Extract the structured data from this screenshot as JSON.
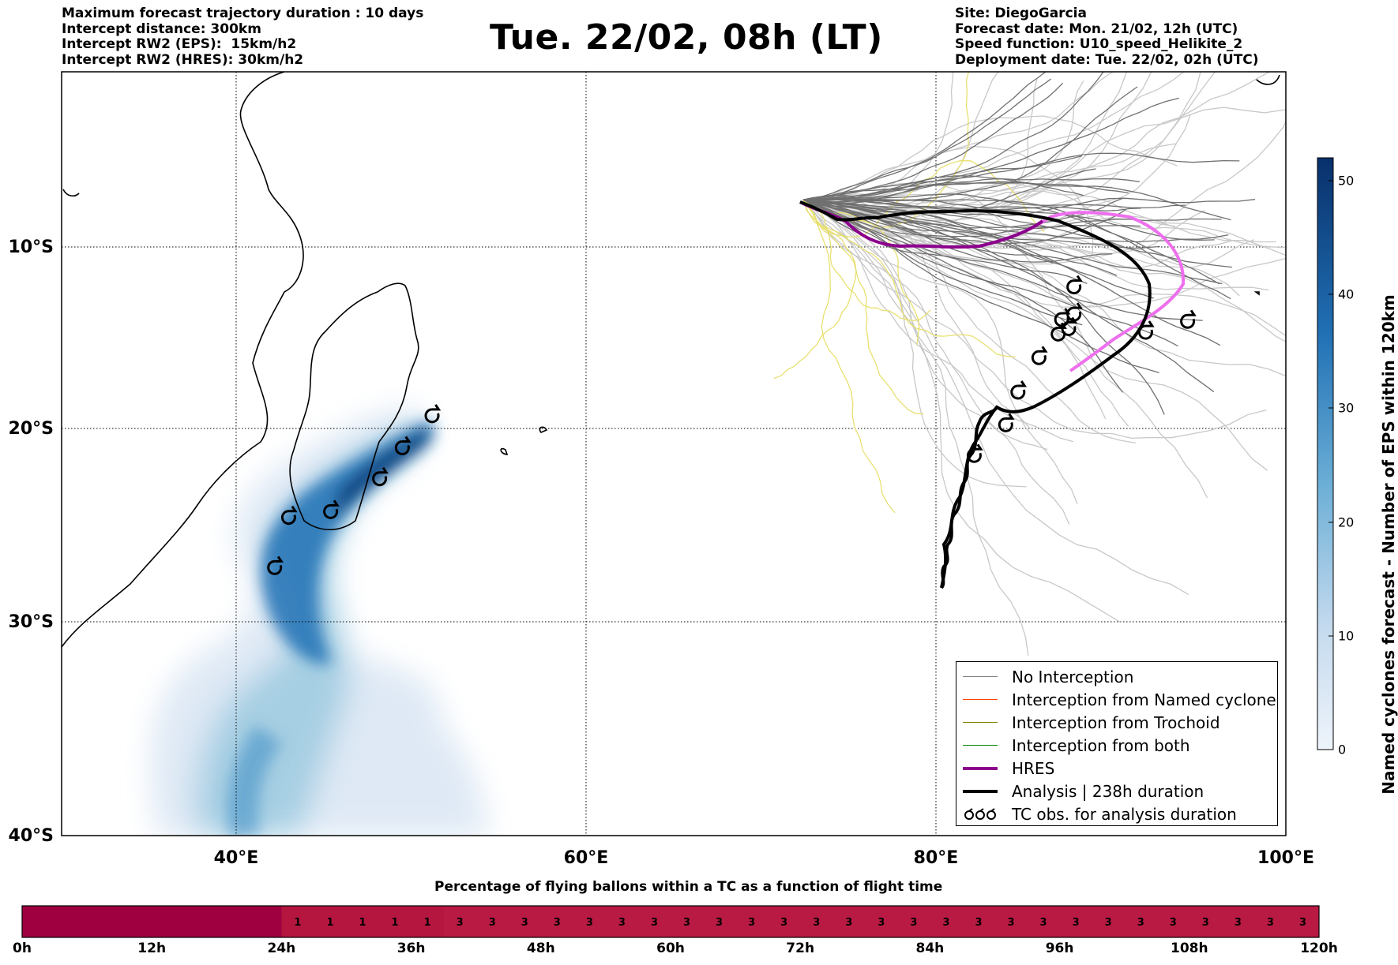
{
  "header_left": [
    "Maximum forecast trajectory duration : 10 days",
    "Intercept distance: 300km",
    "Intercept RW2 (EPS):  15km/h2",
    "Intercept RW2 (HRES): 30km/h2"
  ],
  "title": "Tue. 22/02, 08h (LT)",
  "header_right": [
    "Site: DiegoGarcia",
    "Forecast date: Mon. 21/02, 12h (UTC)",
    "Speed function: U10_speed_Helikite_2",
    "Deployment date: Tue. 22/02, 02h (UTC)"
  ],
  "map": {
    "lon_range": [
      30,
      100
    ],
    "lat_range": [
      -40,
      0
    ],
    "lon_ticks": [
      "40°E",
      "60°E",
      "80°E",
      "100°E"
    ],
    "lat_ticks": [
      "10°S",
      "20°S",
      "30°S",
      "40°S"
    ],
    "grid": "dotted"
  },
  "legend": {
    "items": [
      {
        "label": "No Interception",
        "color": "#808080"
      },
      {
        "label": "Interception from Named cyclone",
        "color": "#ff4500"
      },
      {
        "label": "Interception from Trochoid",
        "color": "#808000"
      },
      {
        "label": "Interception from both",
        "color": "#008000"
      },
      {
        "label": "HRES",
        "color": "#8b008b"
      },
      {
        "label": "Analysis | 238h duration",
        "color": "#000000"
      },
      {
        "label": "TC obs. for analysis duration",
        "icon": "cyclone-symbol-icon"
      }
    ]
  },
  "colorbar": {
    "label": "Named cyclones forecast - Number of EPS within 120km",
    "ticks": [
      "0",
      "10",
      "20",
      "30",
      "40",
      "50"
    ],
    "range": [
      0,
      52
    ],
    "colors": [
      "#e4edf8",
      "#08306b"
    ]
  },
  "timeline": {
    "title": "Percentage of flying ballons within a TC as a function of flight time",
    "tick_labels": [
      "0h",
      "12h",
      "24h",
      "36h",
      "48h",
      "60h",
      "72h",
      "84h",
      "96h",
      "108h",
      "120h"
    ],
    "cell_values": [
      0,
      0,
      0,
      0,
      0,
      0,
      0,
      0,
      1,
      1,
      1,
      1,
      1,
      3,
      3,
      3,
      3,
      3,
      3,
      3,
      3,
      3,
      3,
      3,
      3,
      3,
      3,
      3,
      3,
      3,
      3,
      3,
      3,
      3,
      3,
      3,
      3,
      3,
      3,
      3
    ],
    "colors": {
      "0": "#9e0040",
      "1": "#b5163f",
      "3": "#b81a43"
    }
  },
  "chart_data": {
    "type": "heatmap",
    "title": "Tue. 22/02, 08h (LT)",
    "tc_observations_lonlat": [
      [
        42.2,
        -27.2
      ],
      [
        43.0,
        -24.6
      ],
      [
        45.4,
        -24.3
      ],
      [
        48.2,
        -22.6
      ],
      [
        49.5,
        -21.0
      ],
      [
        51.2,
        -19.3
      ],
      [
        84.0,
        -19.8
      ],
      [
        84.7,
        -18.0
      ],
      [
        85.9,
        -16.1
      ],
      [
        87.0,
        -14.8
      ],
      [
        87.2,
        -14.0
      ],
      [
        87.6,
        -14.5
      ],
      [
        87.9,
        -13.7
      ],
      [
        87.9,
        -12.2
      ],
      [
        92.0,
        -14.7
      ],
      [
        94.4,
        -14.1
      ],
      [
        82.2,
        -21.4
      ]
    ],
    "origin_lonlat": [
      72.4,
      -7.3
    ]
  }
}
